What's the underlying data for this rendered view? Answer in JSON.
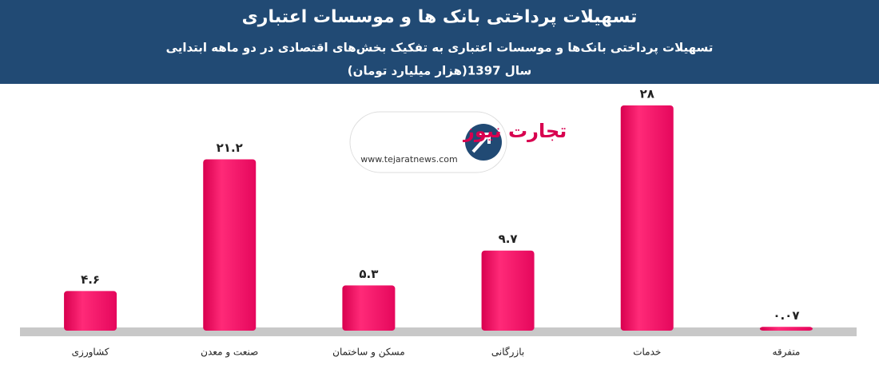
{
  "chart_data": {
    "type": "bar",
    "title": "تسهیلات پرداختی بانک ها و موسسات اعتباری",
    "subtitle": [
      "تسهیلات پرداختی بانک‌ها و موسسات اعتباری به تفکیک بخش‌های اقتصادی در دو ماهه ابتدایی",
      "سال 1397(هزار میلیارد تومان)"
    ],
    "categories": [
      "کشاورزی",
      "صنعت و معدن",
      "مسکن و ساختمان",
      "بازرگانی",
      "خدمات",
      "متفرقه"
    ],
    "values": [
      4.6,
      21.2,
      5.3,
      9.7,
      28,
      0.07
    ],
    "value_labels": [
      "۴.۶",
      "۲۱.۲",
      "۵.۳",
      "۹.۷",
      "۲۸",
      "۰.۰۷"
    ],
    "color": "#f7186c",
    "ylim": [
      0,
      28
    ]
  },
  "logo": {
    "name": "تجارت نیوز",
    "url": "www.tejaratnews.com"
  }
}
